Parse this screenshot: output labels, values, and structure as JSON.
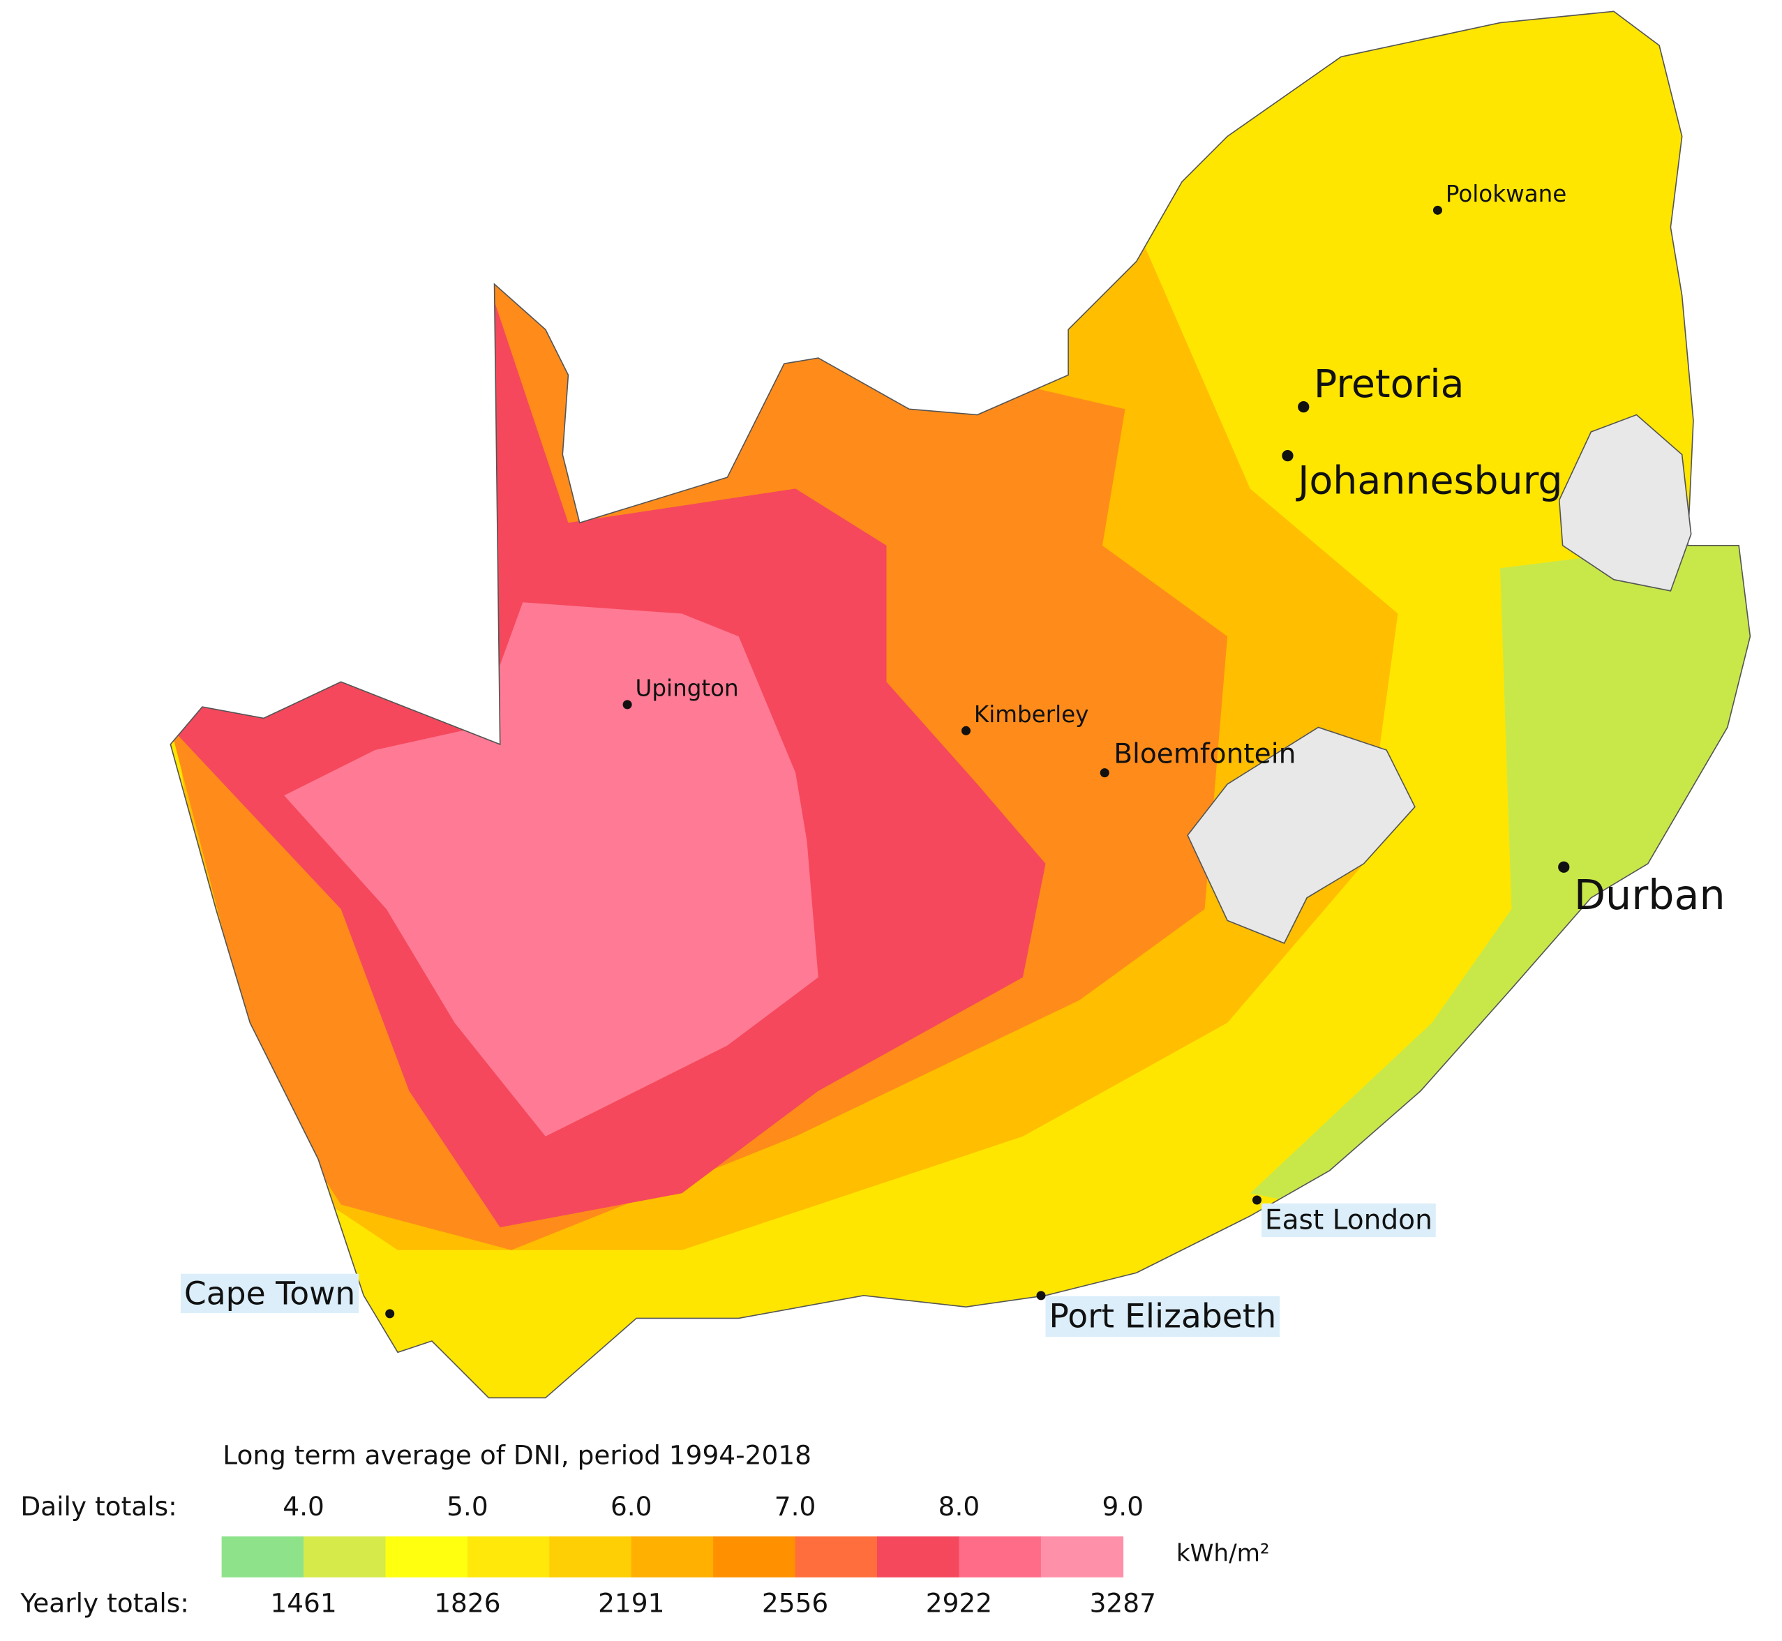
{
  "map": {
    "cities": [
      {
        "label": "Polokwane"
      },
      {
        "label": "Pretoria"
      },
      {
        "label": "Johannesburg"
      },
      {
        "label": "Durban"
      },
      {
        "label": "Upington"
      },
      {
        "label": "Kimberley"
      },
      {
        "label": "Bloemfontein"
      },
      {
        "label": "East London"
      },
      {
        "label": "Port Elizabeth"
      },
      {
        "label": "Cape Town"
      }
    ]
  },
  "legend": {
    "title": "Long term average of DNI, period 1994-2018",
    "daily_label": "Daily totals:",
    "daily_values": [
      "4.0",
      "5.0",
      "6.0",
      "7.0",
      "8.0",
      "9.0"
    ],
    "yearly_label": "Yearly totals:",
    "yearly_values": [
      "1461",
      "1826",
      "2191",
      "2556",
      "2922",
      "3287"
    ],
    "unit": "kWh/m²",
    "colors": [
      "#8ee38a",
      "#d6ea4a",
      "#ffff10",
      "#ffe80a",
      "#ffcf05",
      "#ffb000",
      "#ff9000",
      "#ff6e3c",
      "#f5485c",
      "#ff6c88",
      "#ff90aa"
    ]
  }
}
